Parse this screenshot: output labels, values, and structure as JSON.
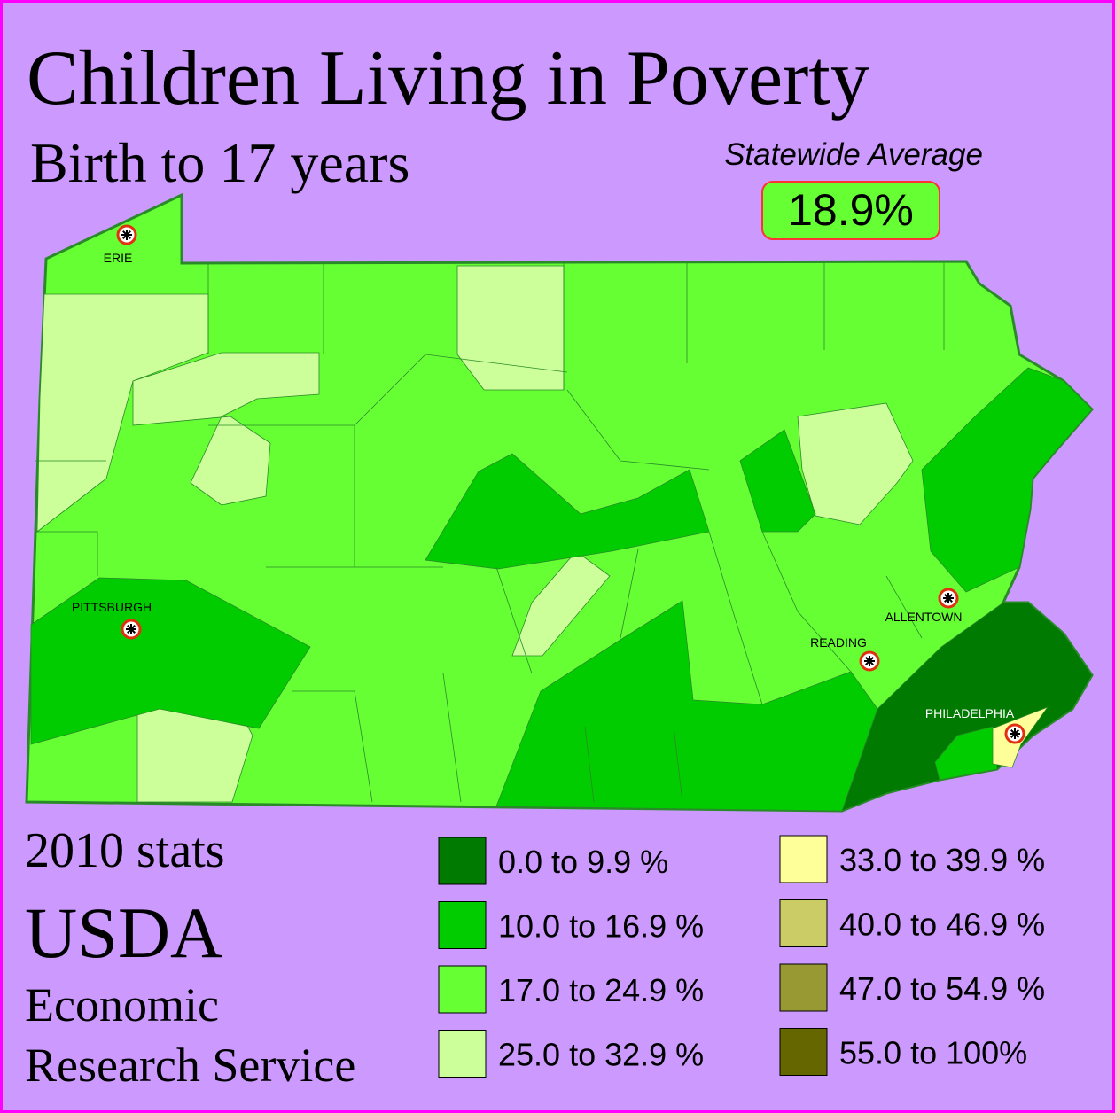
{
  "title": "Children Living in Poverty",
  "subtitle": "Birth to 17 years",
  "statewide": {
    "label": "Statewide Average",
    "value": "18.9%"
  },
  "cities": [
    {
      "name": "ERIE"
    },
    {
      "name": "PITTSBURGH"
    },
    {
      "name": "ALLENTOWN"
    },
    {
      "name": "READING"
    },
    {
      "name": "PHILADELPHIA"
    }
  ],
  "legend": [
    {
      "label": "0.0 to 9.9 %",
      "color": "#007a00"
    },
    {
      "label": "10.0 to 16.9 %",
      "color": "#00cc00"
    },
    {
      "label": "17.0 to 24.9 %",
      "color": "#66ff33"
    },
    {
      "label": "25.0 to 32.9 %",
      "color": "#ccff99"
    },
    {
      "label": "33.0 to 39.9 %",
      "color": "#ffff99"
    },
    {
      "label": "40.0 to 46.9 %",
      "color": "#cccc66"
    },
    {
      "label": "47.0 to 54.9 %",
      "color": "#999933"
    },
    {
      "label": "55.0 to 100%",
      "color": "#666600"
    }
  ],
  "source": [
    "2010 stats",
    "USDA",
    "Economic",
    "Research Service"
  ]
}
